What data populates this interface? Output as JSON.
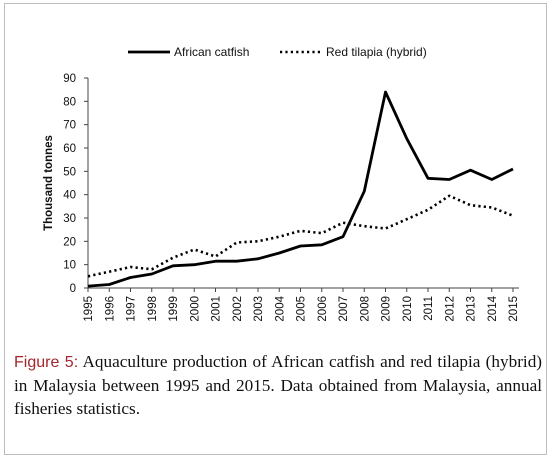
{
  "caption": {
    "label": "Figure 5:",
    "text": " Aquaculture production of African catfish and red tilapia (hybrid) in Malaysia between 1995 and 2015. Data obtained from Malaysia, annual fisheries statistics."
  },
  "chart_data": {
    "type": "line",
    "ylabel": "Thousand tonnes",
    "xlabel": "",
    "ylim": [
      0,
      90
    ],
    "yticks": [
      0,
      10,
      20,
      30,
      40,
      50,
      60,
      70,
      80,
      90
    ],
    "categories": [
      "1995",
      "1996",
      "1997",
      "1998",
      "1999",
      "2000",
      "2001",
      "2002",
      "2003",
      "2004",
      "2005",
      "2006",
      "2007",
      "2008",
      "2009",
      "2010",
      "2011",
      "2012",
      "2013",
      "2014",
      "2015"
    ],
    "legend_position": "top",
    "grid": false,
    "series": [
      {
        "name": "African catfish",
        "style": "solid",
        "color": "#000000",
        "values": [
          0.8,
          1.5,
          4.5,
          6,
          9.5,
          10,
          11.5,
          11.5,
          12.5,
          15,
          18,
          18.5,
          22,
          41.5,
          84,
          64,
          47,
          46.5,
          50.5,
          46.5,
          51
        ]
      },
      {
        "name": "Red tilapia (hybrid)",
        "style": "dotted",
        "color": "#000000",
        "values": [
          5,
          7,
          9,
          8,
          13,
          16.5,
          13.5,
          19.5,
          20,
          22,
          24.5,
          23.5,
          28,
          26.5,
          25.5,
          29.5,
          33.5,
          39.5,
          35.5,
          34.5,
          31
        ]
      }
    ]
  }
}
